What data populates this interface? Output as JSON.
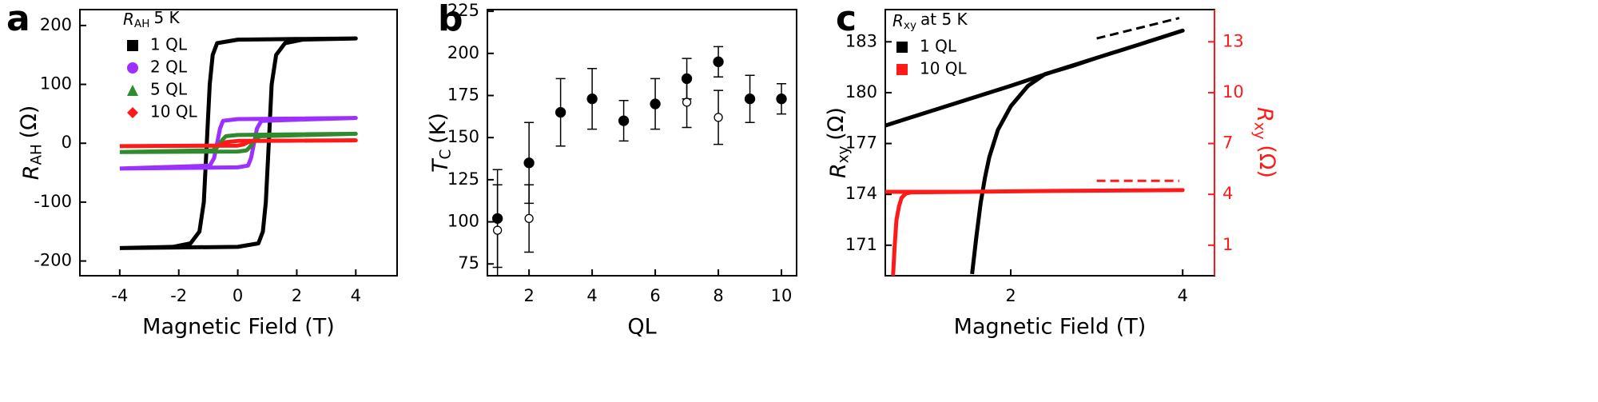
{
  "chart_data": [
    {
      "type": "line",
      "panel_label": "a",
      "legend_title": {
        "symbol": "R",
        "sub": "AH",
        "text": "5 K"
      },
      "xlabel": "Magnetic Field (T)",
      "ylabel": {
        "symbol": "R",
        "sub": "AH",
        "unit": "(Ω)"
      },
      "xlim": [
        -5.35,
        5.4
      ],
      "ylim": [
        -225,
        227
      ],
      "xticks": [
        -4,
        -2,
        0,
        2,
        4
      ],
      "yticks": [
        -200,
        -100,
        0,
        100,
        200
      ],
      "series": [
        {
          "name": "1 QL",
          "color": "#000000",
          "marker": "square",
          "x": [
            -4,
            -2,
            0,
            0.7,
            0.85,
            0.95,
            1.05,
            1.15,
            1.3,
            1.6,
            2.2,
            4,
            2,
            0,
            -0.7,
            -0.85,
            -0.95,
            -1.05,
            -1.15,
            -1.3,
            -1.6,
            -2.2,
            -4
          ],
          "values": [
            -178,
            -177,
            -176,
            -170,
            -150,
            -100,
            0,
            100,
            150,
            170,
            176,
            178,
            177,
            176,
            170,
            150,
            100,
            0,
            -100,
            -150,
            -170,
            -176,
            -178
          ]
        },
        {
          "name": "2 QL",
          "color": "#9b30ff",
          "marker": "circle",
          "x": [
            -4,
            0,
            0.35,
            0.45,
            0.55,
            0.65,
            0.8,
            4,
            0,
            -0.5,
            -0.6,
            -0.7,
            -0.8,
            -0.95,
            -4
          ],
          "values": [
            -43,
            -41,
            -38,
            -25,
            0,
            25,
            38,
            43,
            41,
            38,
            25,
            0,
            -25,
            -38,
            -43
          ]
        },
        {
          "name": "5 QL",
          "color": "#2e8b2e",
          "marker": "triangle",
          "x": [
            -4,
            0,
            0.3,
            0.4,
            0.5,
            0.6,
            0.75,
            4,
            0,
            -0.4,
            -0.5,
            -0.6,
            -0.7,
            -0.85,
            -4
          ],
          "values": [
            -15,
            -14,
            -12,
            -7,
            0,
            7,
            12,
            16,
            14,
            12,
            7,
            0,
            -7,
            -12,
            -15
          ]
        },
        {
          "name": "10 QL",
          "color": "#ff1a1a",
          "marker": "diamond",
          "x": [
            -4,
            0,
            0.2,
            0.35,
            0.5,
            4,
            0,
            -0.4,
            -0.55,
            -0.7,
            -4
          ],
          "values": [
            -5,
            -4,
            -2,
            2,
            4,
            5,
            4,
            2,
            -2,
            -4,
            -5
          ]
        }
      ]
    },
    {
      "type": "scatter",
      "panel_label": "b",
      "xlabel": "QL",
      "ylabel": {
        "symbol": "T",
        "sub": "C",
        "unit": "(K)"
      },
      "xlim": [
        0.68,
        10.48
      ],
      "ylim": [
        68,
        226
      ],
      "xticks": [
        2,
        4,
        6,
        8,
        10
      ],
      "yticks": [
        75,
        100,
        125,
        150,
        175,
        200,
        225
      ],
      "series": [
        {
          "color": "#000000",
          "marker": "filled",
          "x": [
            1,
            2,
            3,
            4,
            5,
            6,
            7,
            8,
            9,
            10
          ],
          "values": [
            102,
            135,
            165,
            173,
            160,
            170,
            185,
            195,
            173,
            173
          ],
          "errors": [
            29,
            24,
            20,
            18,
            12,
            15,
            12,
            9,
            14,
            9
          ]
        },
        {
          "color": "#000000",
          "marker": "open",
          "x": [
            1,
            2,
            7,
            8
          ],
          "values": [
            95,
            102,
            171,
            162
          ],
          "errors": [
            27,
            20,
            15,
            16
          ]
        }
      ]
    },
    {
      "type": "line",
      "panel_label": "c",
      "legend_title": {
        "symbol": "R",
        "sub": "xy",
        "text": "at 5 K"
      },
      "xlabel": "Magnetic Field (T)",
      "ylabel": {
        "symbol": "R",
        "sub": "xy",
        "unit": "(Ω)"
      },
      "y2label": {
        "symbol": "R",
        "sub": "xy",
        "unit": "(Ω)"
      },
      "y2color": "#ff1a1a",
      "xlim": [
        0.54,
        4.37
      ],
      "ylim": [
        169.2,
        184.9
      ],
      "y2lim": [
        -0.8,
        14.9
      ],
      "xticks": [
        2,
        4
      ],
      "yticks": [
        171,
        174,
        177,
        180,
        183
      ],
      "y2ticks": [
        1,
        4,
        7,
        10,
        13
      ],
      "series": [
        {
          "name": "1 QL",
          "color": "#000000",
          "marker": "square",
          "x": [
            1.55,
            1.6,
            1.65,
            1.7,
            1.75,
            1.85,
            2.0,
            2.2,
            2.4,
            2.7,
            3,
            3.5,
            4,
            3.5,
            3,
            2.5,
            2,
            1.5,
            1,
            0.54
          ],
          "values": [
            169.3,
            171.5,
            173.5,
            175.0,
            176.2,
            177.8,
            179.2,
            180.4,
            181.1,
            181.55,
            182.05,
            182.85,
            183.66,
            182.85,
            182.05,
            181.25,
            180.4,
            179.6,
            178.8,
            178.06
          ]
        },
        {
          "name": "10 QL",
          "color": "#ff1a1a",
          "marker": "square",
          "axis": "y2",
          "x": [
            0.63,
            0.65,
            0.67,
            0.7,
            0.73,
            0.78,
            0.85,
            1.5,
            2.5,
            4,
            2.5,
            1.5,
            0.54
          ],
          "values": [
            -0.8,
            1,
            2.5,
            3.3,
            3.8,
            4.05,
            4.12,
            4.15,
            4.2,
            4.25,
            4.2,
            4.15,
            4.15
          ]
        },
        {
          "color": "#000000",
          "dash": true,
          "x": [
            3,
            3.96
          ],
          "values": [
            183.2,
            184.4
          ]
        },
        {
          "color": "#ff1a1a",
          "dash": true,
          "axis": "y2",
          "x": [
            3,
            3.96
          ],
          "values": [
            4.8,
            4.8
          ]
        }
      ]
    }
  ]
}
